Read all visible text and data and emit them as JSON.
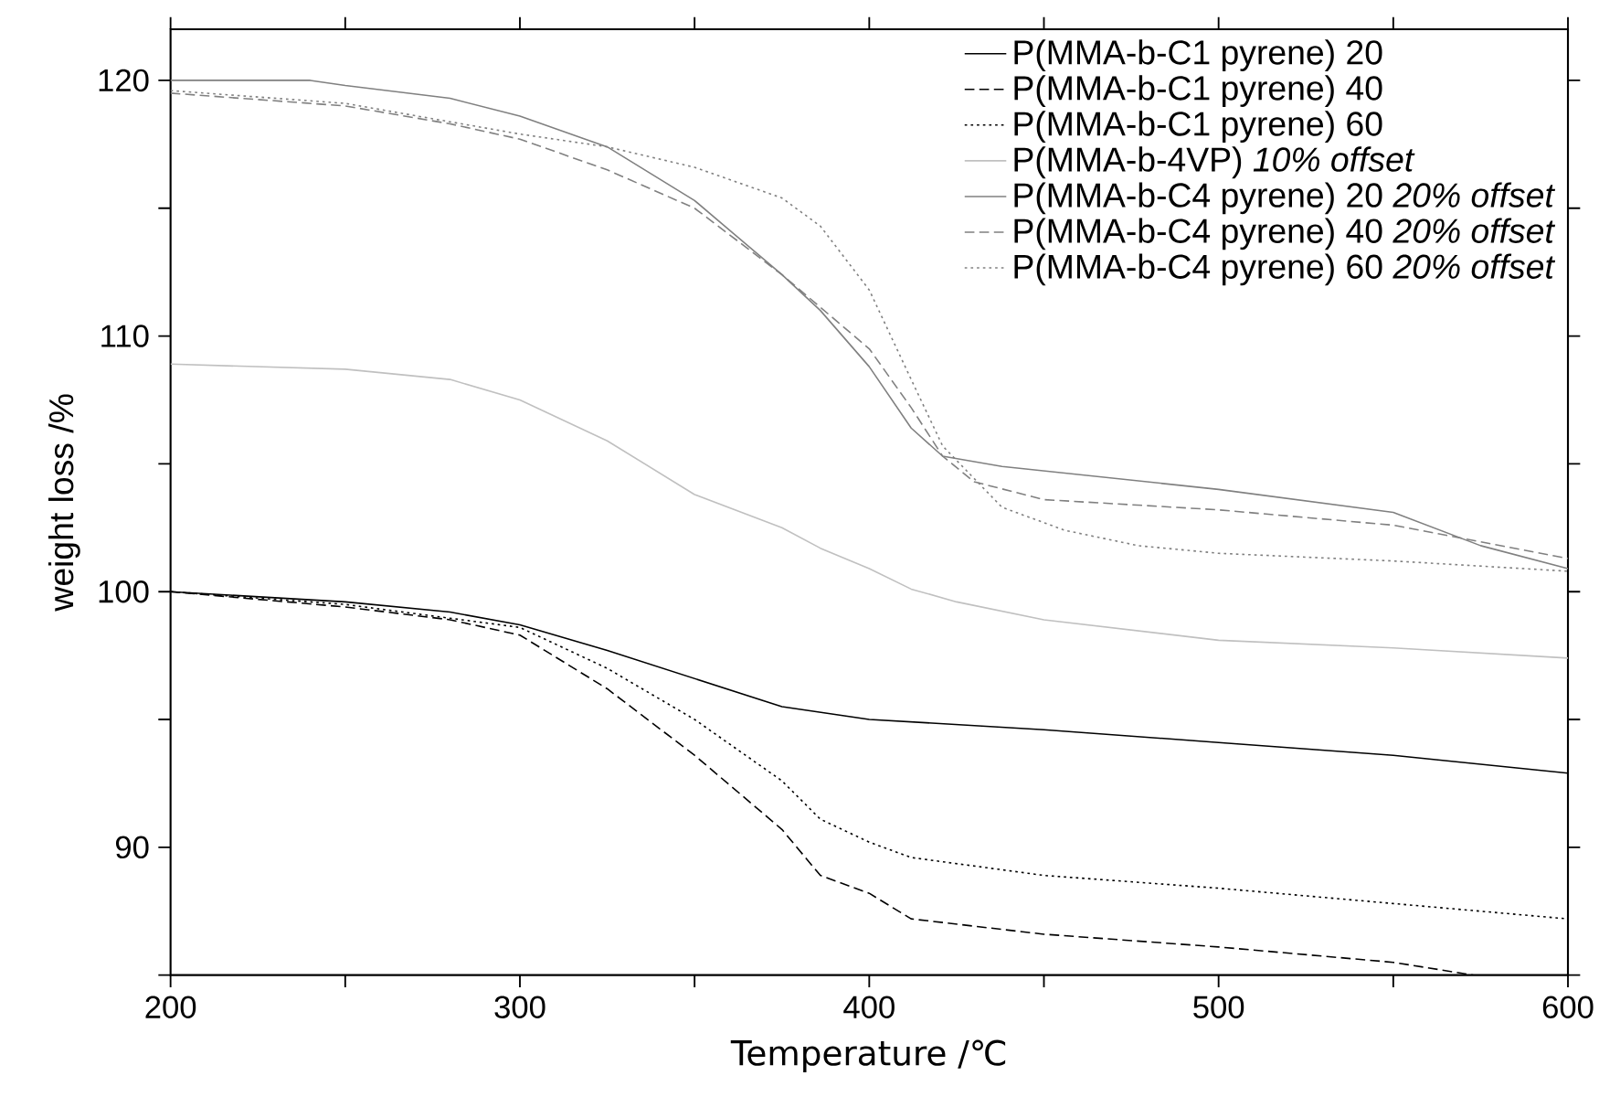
{
  "chart_data": {
    "type": "line",
    "xlabel": "Temperature /℃",
    "ylabel": "weight loss /%",
    "xlim": [
      200,
      600
    ],
    "ylim": [
      85,
      122
    ],
    "xticks": [
      200,
      {
        "value": 250,
        "label": null
      },
      300,
      {
        "value": 350,
        "label": null
      },
      400,
      {
        "value": 450,
        "label": null
      },
      500,
      {
        "value": 550,
        "label": null
      },
      600
    ],
    "yticks": [
      {
        "value": 85,
        "label": null
      },
      90,
      {
        "value": 95,
        "label": null
      },
      100,
      {
        "value": 105,
        "label": null
      },
      110,
      {
        "value": 115,
        "label": null
      },
      120
    ],
    "grid": false,
    "legend": "top right",
    "marker": "none",
    "series": [
      {
        "name": "P(MMA-b-C1 pyrene) 20",
        "color": "#000000",
        "line_style": "solid",
        "x": [
          200,
          250,
          280,
          300,
          325,
          350,
          375,
          400,
          450,
          500,
          550,
          600
        ],
        "values": [
          100.0,
          99.6,
          99.2,
          98.7,
          97.7,
          96.6,
          95.5,
          95.0,
          94.6,
          94.1,
          93.6,
          92.9
        ]
      },
      {
        "name": "P(MMA-b-C1 pyrene) 40",
        "color": "#000000",
        "line_style": "dashed",
        "x": [
          200,
          250,
          280,
          300,
          325,
          350,
          375,
          386,
          400,
          412,
          450,
          500,
          550,
          573
        ],
        "values": [
          100.0,
          99.4,
          98.9,
          98.3,
          96.2,
          93.6,
          90.7,
          88.9,
          88.2,
          87.2,
          86.6,
          86.1,
          85.5,
          85.0
        ]
      },
      {
        "name": "P(MMA-b-C1 pyrene) 60",
        "color": "#000000",
        "line_style": "dotted",
        "x": [
          200,
          250,
          300,
          325,
          350,
          375,
          386,
          400,
          412,
          450,
          500,
          550,
          600
        ],
        "values": [
          100.0,
          99.5,
          98.6,
          97.0,
          95.0,
          92.6,
          91.1,
          90.2,
          89.6,
          88.9,
          88.4,
          87.8,
          87.2
        ]
      },
      {
        "name": "P(MMA-b-4VP) *10% offset*",
        "color": "#c0c0c0",
        "line_style": "solid",
        "x": [
          200,
          250,
          280,
          300,
          325,
          350,
          375,
          386,
          400,
          412,
          425,
          450,
          500,
          550,
          600
        ],
        "values": [
          108.9,
          108.7,
          108.3,
          107.5,
          105.9,
          103.8,
          102.5,
          101.7,
          100.9,
          100.1,
          99.6,
          98.9,
          98.1,
          97.8,
          97.4
        ]
      },
      {
        "name": "P(MMA-b-C4 pyrene) 20 *20% offset*",
        "color": "#808080",
        "line_style": "solid",
        "x": [
          200,
          240,
          250,
          280,
          300,
          325,
          350,
          375,
          386,
          400,
          412,
          421,
          438,
          500,
          550,
          575,
          600
        ],
        "values": [
          120.0,
          120.0,
          119.8,
          119.3,
          118.6,
          117.4,
          115.3,
          112.4,
          111.0,
          108.8,
          106.4,
          105.3,
          104.9,
          104.0,
          103.1,
          101.8,
          100.9
        ]
      },
      {
        "name": "P(MMA-b-C4 pyrene) 40 *20% offset*",
        "color": "#808080",
        "line_style": "dashed",
        "x": [
          200,
          250,
          280,
          300,
          325,
          350,
          375,
          400,
          412,
          421,
          430,
          450,
          500,
          550,
          600
        ],
        "values": [
          119.5,
          119.0,
          118.3,
          117.7,
          116.5,
          115.0,
          112.4,
          109.5,
          107.2,
          105.3,
          104.3,
          103.6,
          103.2,
          102.6,
          101.3
        ]
      },
      {
        "name": "P(MMA-b-C4 pyrene) 60 *20% offset*",
        "color": "#808080",
        "line_style": "dotted",
        "x": [
          200,
          250,
          300,
          325,
          350,
          375,
          386,
          400,
          412,
          421,
          438,
          456,
          477,
          500,
          550,
          600
        ],
        "values": [
          119.6,
          119.1,
          117.9,
          117.4,
          116.6,
          115.4,
          114.3,
          111.8,
          108.3,
          105.7,
          103.3,
          102.4,
          101.8,
          101.5,
          101.2,
          100.8
        ]
      }
    ]
  }
}
